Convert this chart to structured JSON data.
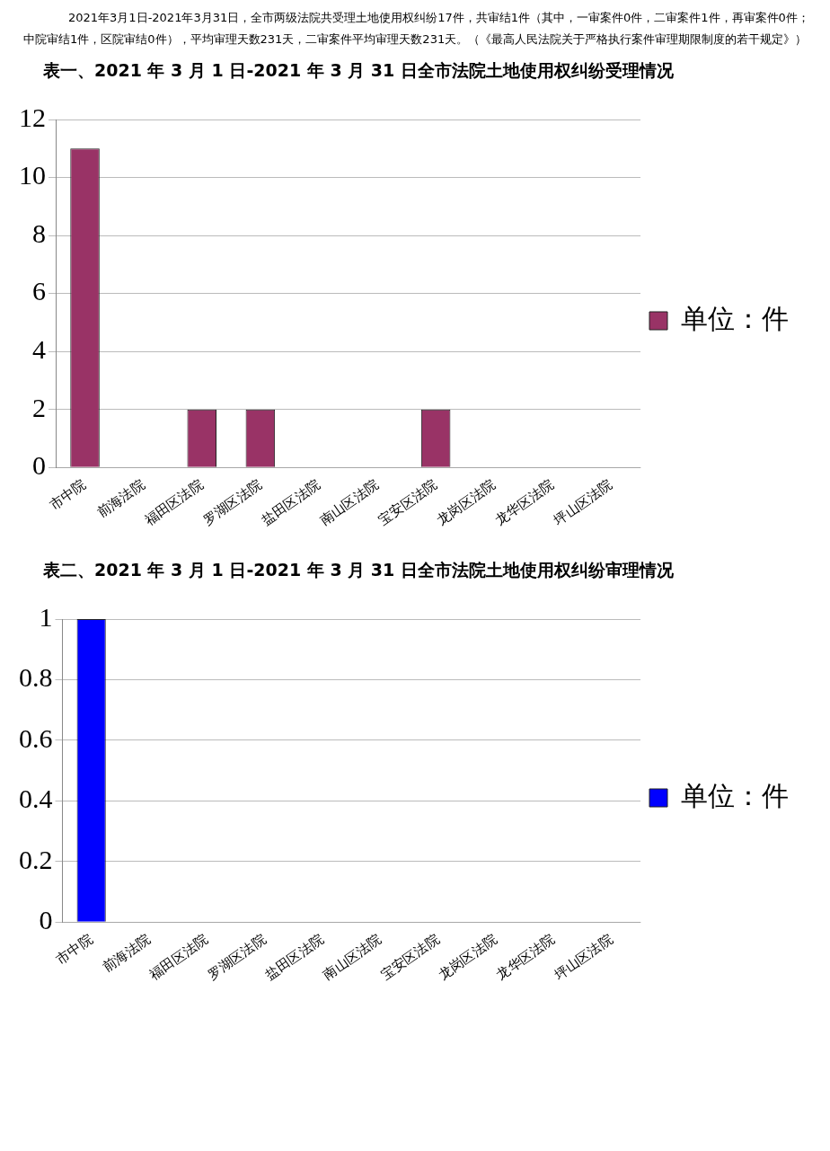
{
  "chart_data": [
    {
      "type": "bar",
      "title": "表一、2021 年 3 月 1 日-2021 年 3 月 31 日全市法院土地使用权纠纷受理情况",
      "annotations": [
        "2021年3月1日-2021年3月31日，全市两级法院共受理土地使用权纠纷17件，共审结1件（其中，一审案件0件，二审案件1件，再审案件0件；中院审结1件，区院审结0件），平均审理天数231天，二审案件平均审理天数231天。（《最高人民法院关于严格执行案件审理期限制度的若干规定》）"
      ],
      "categories": [
        "市中院",
        "前海法院",
        "福田区法院",
        "罗湖区法院",
        "盐田区法院",
        "南山区法院",
        "宝安区法院",
        "龙岗区法院",
        "龙华区法院",
        "坪山区法院"
      ],
      "series": [
        {
          "name": "单位：件",
          "color": "#993366",
          "values": [
            11,
            0,
            2,
            2,
            0,
            0,
            2,
            0,
            0,
            0
          ]
        }
      ],
      "ylim": [
        0,
        12
      ],
      "yticks": [
        0,
        2,
        4,
        6,
        8,
        10,
        12
      ],
      "grid": "y",
      "legend": "right"
    },
    {
      "type": "bar",
      "title": "表二、2021 年 3 月 1 日-2021 年 3 月 31 日全市法院土地使用权纠纷审理情况",
      "categories": [
        "市中院",
        "前海法院",
        "福田区法院",
        "罗湖区法院",
        "盐田区法院",
        "南山区法院",
        "宝安区法院",
        "龙岗区法院",
        "龙华区法院",
        "坪山区法院"
      ],
      "series": [
        {
          "name": "单位：件",
          "color": "#0000ff",
          "values": [
            1,
            0,
            0,
            0,
            0,
            0,
            0,
            0,
            0,
            0
          ]
        }
      ],
      "ylim": [
        0,
        1
      ],
      "yticks": [
        0,
        0.2,
        0.4,
        0.6,
        0.8,
        1
      ],
      "grid": "y",
      "legend": "right"
    }
  ]
}
